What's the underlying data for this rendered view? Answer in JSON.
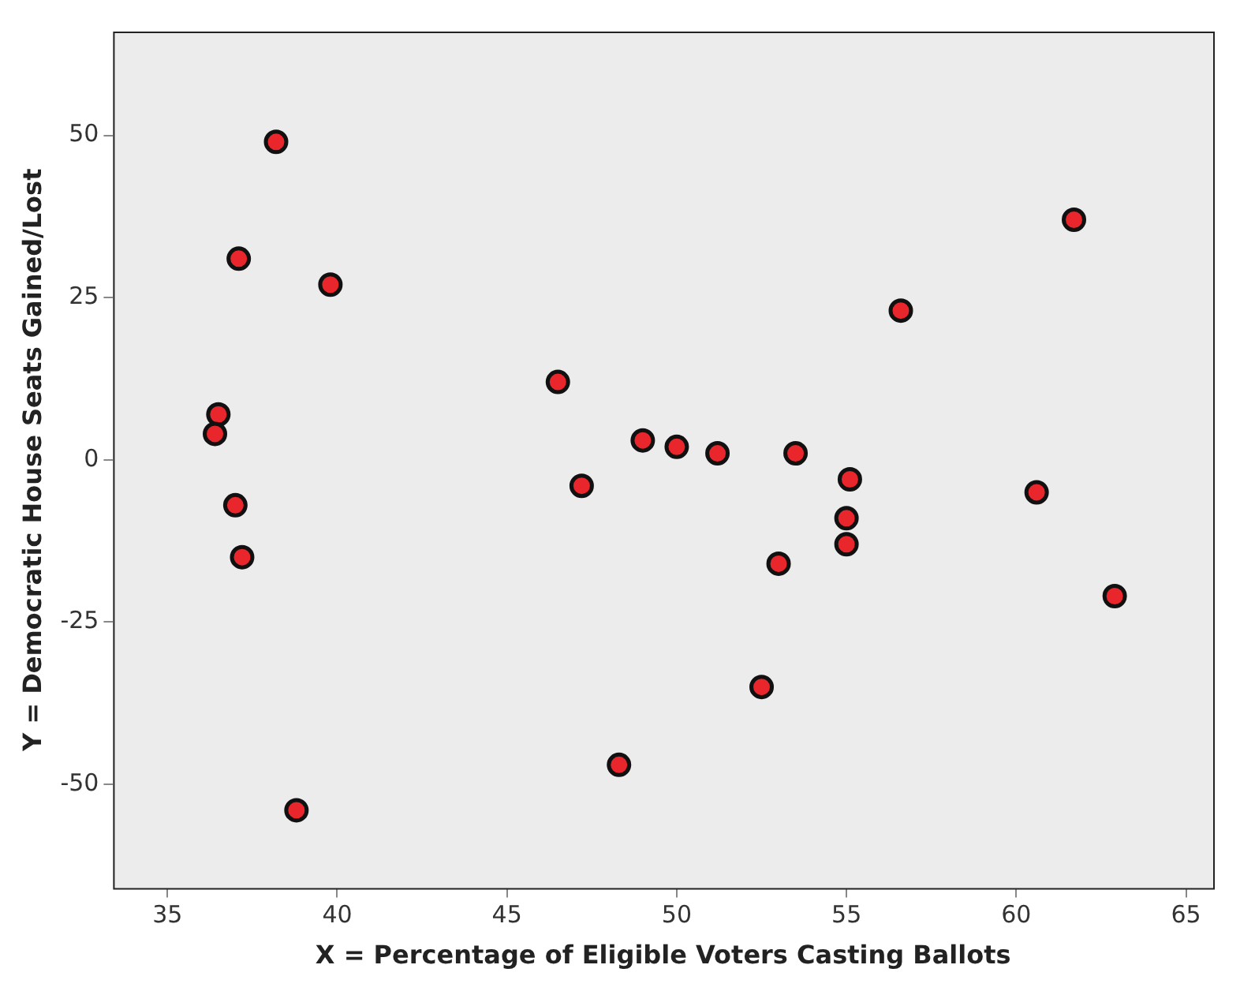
{
  "chart_data": {
    "type": "scatter",
    "xlabel": "X = Percentage of Eligible Voters Casting Ballots",
    "ylabel": "Y = Democratic House Seats Gained/Lost",
    "series": [
      {
        "color": "#e8262b",
        "x": [
          38.2,
          37.1,
          39.8,
          36.5,
          36.4,
          37.0,
          37.2,
          38.8,
          46.5,
          47.2,
          49.0,
          50.0,
          51.2,
          53.5,
          48.3,
          52.5,
          53.0,
          55.1,
          55.0,
          55.0,
          56.6,
          61.7,
          60.6,
          62.9
        ],
        "values": [
          49,
          31,
          27,
          7,
          4,
          -7,
          -15,
          -54,
          12,
          -4,
          3,
          2,
          1,
          1,
          -47,
          -35,
          -16,
          -3,
          -9,
          -13,
          23,
          37,
          -5,
          -21
        ]
      }
    ],
    "xlim": [
      33.4,
      65.8
    ],
    "xticks": [
      35,
      40,
      45,
      50,
      55,
      60,
      65
    ],
    "ylim": [
      -66,
      66
    ],
    "yticks": [
      -50,
      -25,
      0,
      25,
      50
    ],
    "grid": false,
    "legend": false,
    "marker": "circle"
  }
}
